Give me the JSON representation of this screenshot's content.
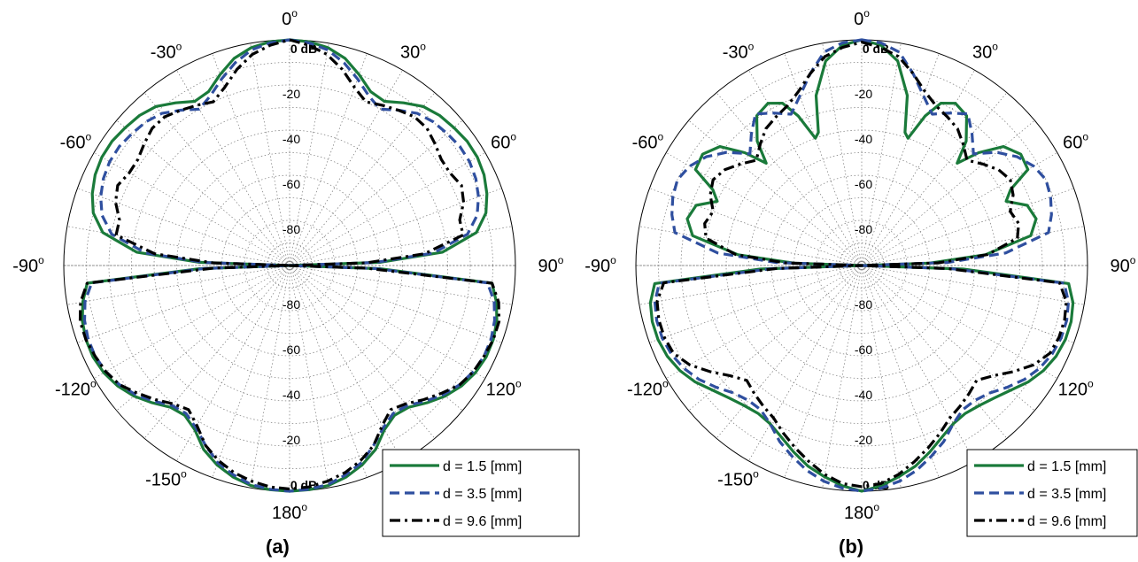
{
  "chart_data": [
    {
      "type": "polar-line",
      "caption": "(a)",
      "angle_unit": "deg",
      "zero_direction": "top",
      "angle_labels": [
        "0",
        "30",
        "60",
        "90",
        "120",
        "150",
        "180",
        "-150",
        "-120",
        "-90",
        "-60",
        "-30"
      ],
      "r_labels_upper": [
        "0 dB",
        "-20",
        "-40",
        "-60",
        "-80"
      ],
      "r_labels_lower": [
        "0 dB",
        "-20",
        "-40",
        "-60",
        "-80"
      ],
      "r_range_db": [
        -100,
        0
      ],
      "grid": true,
      "legend_position": "bottom-right",
      "series": [
        {
          "name": "d = 1.5 [mm]",
          "color": "#1a7a3a",
          "style": "solid",
          "theta": [
            0,
            5,
            10,
            15,
            20,
            25,
            30,
            35,
            40,
            45,
            50,
            55,
            60,
            65,
            70,
            75,
            80,
            85,
            88,
            90,
            92,
            95,
            100,
            105,
            110,
            115,
            120,
            125,
            130,
            135,
            140,
            145,
            150,
            155,
            160,
            165,
            170,
            175,
            180
          ],
          "r_db": [
            0,
            -0.5,
            -2,
            -5,
            -10,
            -15,
            -16,
            -12,
            -8,
            -6,
            -5,
            -4,
            -4,
            -5,
            -7,
            -10,
            -16,
            -32,
            -60,
            -100,
            -60,
            -10,
            -7,
            -5,
            -4,
            -4,
            -5,
            -7,
            -10,
            -14,
            -18,
            -19,
            -16,
            -10,
            -6,
            -3,
            -1,
            -0.3,
            0
          ]
        },
        {
          "name": "d = 3.5 [mm]",
          "color": "#2f4f9f",
          "style": "dashed",
          "theta": [
            0,
            5,
            10,
            15,
            20,
            25,
            30,
            35,
            40,
            45,
            50,
            55,
            60,
            65,
            70,
            75,
            80,
            85,
            88,
            90,
            92,
            95,
            100,
            105,
            110,
            115,
            120,
            125,
            130,
            135,
            140,
            145,
            150,
            155,
            160,
            165,
            170,
            175,
            180
          ],
          "r_db": [
            0,
            -1,
            -3,
            -7,
            -12,
            -17,
            -20,
            -16,
            -12,
            -10,
            -9,
            -8,
            -8,
            -9,
            -11,
            -14,
            -20,
            -36,
            -62,
            -100,
            -62,
            -12,
            -8,
            -6,
            -5,
            -5,
            -6,
            -8,
            -11,
            -15,
            -19,
            -20,
            -17,
            -12,
            -7,
            -4,
            -1.5,
            -0.5,
            0
          ]
        },
        {
          "name": "d = 9.6 [mm]",
          "color": "#000000",
          "style": "dash-dot",
          "theta": [
            0,
            5,
            10,
            15,
            20,
            25,
            30,
            35,
            40,
            45,
            50,
            55,
            60,
            65,
            70,
            75,
            80,
            85,
            88,
            90,
            92,
            95,
            100,
            105,
            110,
            115,
            120,
            125,
            130,
            135,
            140,
            145,
            150,
            155,
            160,
            165,
            170,
            175,
            180
          ],
          "r_db": [
            0,
            -2,
            -5,
            -10,
            -16,
            -20,
            -18,
            -16,
            -14,
            -14,
            -16,
            -18,
            -18,
            -16,
            -18,
            -22,
            -22,
            -40,
            -66,
            -100,
            -66,
            -10,
            -6,
            -4,
            -4,
            -5,
            -6,
            -8,
            -12,
            -16,
            -20,
            -22,
            -18,
            -12,
            -8,
            -5,
            -3,
            -1.5,
            -1
          ]
        }
      ]
    },
    {
      "type": "polar-line",
      "caption": "(b)",
      "angle_unit": "deg",
      "zero_direction": "top",
      "angle_labels": [
        "0",
        "30",
        "60",
        "90",
        "120",
        "150",
        "180",
        "-150",
        "-120",
        "-90",
        "-60",
        "-30"
      ],
      "r_labels_upper": [
        "0 dB",
        "-20",
        "-40",
        "-60",
        "-80"
      ],
      "r_labels_lower": [
        "0 dB",
        "-20",
        "-40",
        "-60",
        "-80"
      ],
      "r_range_db": [
        -100,
        0
      ],
      "grid": true,
      "legend_position": "bottom-right",
      "series": [
        {
          "name": "d = 1.5 [mm]",
          "color": "#1a7a3a",
          "style": "solid",
          "theta": [
            0,
            5,
            10,
            15,
            18,
            20,
            23,
            26,
            30,
            35,
            40,
            43,
            46,
            50,
            55,
            60,
            63,
            66,
            70,
            75,
            80,
            85,
            88,
            90,
            92,
            95,
            100,
            105,
            110,
            115,
            120,
            125,
            130,
            135,
            140,
            145,
            150,
            155,
            160,
            165,
            170,
            175,
            180
          ],
          "r_db": [
            0,
            -2,
            -8,
            -22,
            -38,
            -40,
            -28,
            -20,
            -17,
            -19,
            -28,
            -38,
            -28,
            -18,
            -14,
            -15,
            -26,
            -30,
            -22,
            -20,
            -24,
            -45,
            -70,
            -100,
            -55,
            -8,
            -5,
            -4,
            -4,
            -5,
            -7,
            -10,
            -14,
            -17,
            -19,
            -20,
            -19,
            -16,
            -12,
            -8,
            -5,
            -2,
            0
          ]
        },
        {
          "name": "d = 3.5 [mm]",
          "color": "#2f4f9f",
          "style": "dashed",
          "theta": [
            0,
            5,
            10,
            15,
            20,
            25,
            30,
            35,
            40,
            45,
            50,
            55,
            60,
            65,
            70,
            75,
            80,
            85,
            88,
            90,
            92,
            95,
            100,
            105,
            110,
            115,
            120,
            125,
            130,
            135,
            140,
            145,
            150,
            155,
            160,
            165,
            170,
            175,
            180
          ],
          "r_db": [
            0,
            -1,
            -4,
            -12,
            -20,
            -26,
            -22,
            -18,
            -24,
            -30,
            -22,
            -16,
            -12,
            -10,
            -11,
            -13,
            -16,
            -36,
            -62,
            -100,
            -60,
            -10,
            -7,
            -6,
            -6,
            -7,
            -9,
            -12,
            -16,
            -20,
            -22,
            -22,
            -19,
            -14,
            -10,
            -6,
            -3,
            -1,
            0
          ]
        },
        {
          "name": "d = 9.6 [mm]",
          "color": "#000000",
          "style": "dash-dot",
          "theta": [
            0,
            5,
            10,
            15,
            20,
            25,
            30,
            35,
            40,
            45,
            50,
            55,
            60,
            65,
            70,
            75,
            80,
            85,
            88,
            90,
            92,
            95,
            100,
            105,
            110,
            115,
            120,
            125,
            130,
            135,
            140,
            145,
            150,
            155,
            160,
            165,
            170,
            175,
            180
          ],
          "r_db": [
            -1,
            -3,
            -6,
            -12,
            -18,
            -22,
            -24,
            -26,
            -30,
            -34,
            -30,
            -26,
            -24,
            -26,
            -30,
            -28,
            -30,
            -44,
            -66,
            -100,
            -62,
            -12,
            -8,
            -7,
            -7,
            -8,
            -12,
            -18,
            -24,
            -28,
            -26,
            -24,
            -22,
            -18,
            -14,
            -10,
            -6,
            -3,
            -2
          ]
        }
      ]
    }
  ]
}
